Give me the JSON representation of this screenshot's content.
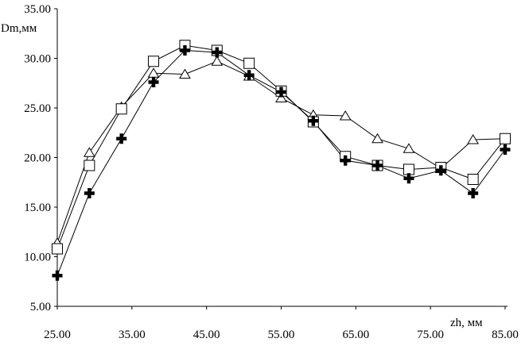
{
  "chart_data": {
    "type": "line",
    "title": "",
    "xlabel": "zh, мм",
    "ylabel": "Dm,мм",
    "xlim": [
      25,
      85
    ],
    "ylim": [
      5,
      35
    ],
    "x_ticks": [
      "25.00",
      "35.00",
      "45.00",
      "55.00",
      "65.00",
      "75.00",
      "85.00"
    ],
    "x_tick_values": [
      25,
      35,
      45,
      55,
      65,
      75,
      85
    ],
    "y_ticks": [
      "5.00",
      "10.00",
      "15.00",
      "20.00",
      "25.00",
      "30.00",
      "35.00"
    ],
    "y_tick_values": [
      5,
      10,
      15,
      20,
      25,
      30,
      35
    ],
    "grid": false,
    "x": [
      25,
      29.3,
      33.6,
      37.9,
      42.1,
      46.4,
      50.7,
      55,
      59.3,
      63.6,
      67.9,
      72.1,
      76.4,
      80.7,
      85
    ],
    "series": [
      {
        "marker": "triangle",
        "values": [
          11.4,
          20.5,
          25.1,
          28.5,
          28.4,
          29.7,
          28.2,
          26.0,
          24.3,
          24.2,
          21.9,
          20.9,
          18.9,
          21.8,
          21.9
        ]
      },
      {
        "marker": "square",
        "values": [
          10.8,
          19.2,
          24.9,
          29.7,
          31.3,
          30.8,
          29.5,
          26.7,
          23.6,
          20.1,
          19.2,
          18.8,
          19.0,
          17.8,
          21.9
        ]
      },
      {
        "marker": "cross",
        "values": [
          8.1,
          16.4,
          21.9,
          27.6,
          30.8,
          30.6,
          28.3,
          26.6,
          23.7,
          19.7,
          19.2,
          17.9,
          18.7,
          16.4,
          20.8
        ]
      }
    ]
  }
}
